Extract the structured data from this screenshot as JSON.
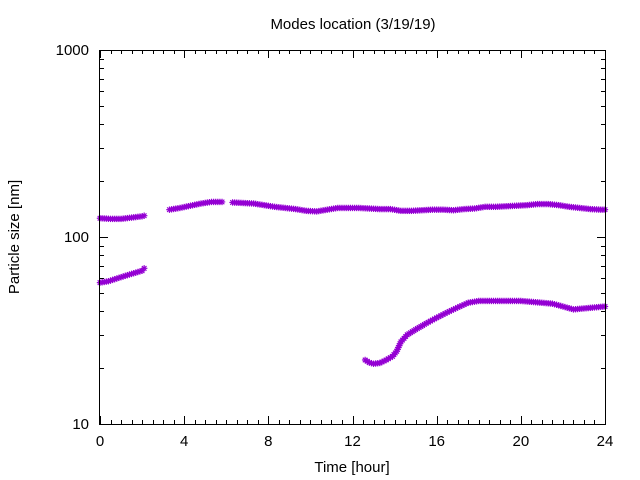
{
  "chart_data": {
    "type": "scatter",
    "title": "Modes location (3/19/19)",
    "xlabel": "Time [hour]",
    "ylabel": "Particle size [nm]",
    "xlim": [
      0,
      24
    ],
    "ylim": [
      10,
      1000
    ],
    "yscale": "log",
    "xticks": [
      0,
      4,
      8,
      12,
      16,
      20,
      24
    ],
    "xtick_labels": [
      "0",
      "4",
      "8",
      "12",
      "16",
      "20",
      "24"
    ],
    "yticks": [
      10,
      100,
      1000
    ],
    "ytick_labels": [
      "10",
      "100",
      "1000"
    ],
    "grid": false,
    "legend": false,
    "marker": "star",
    "color": "#9400d3",
    "series": [
      {
        "x": [
          0.0,
          0.5,
          1.0,
          1.5,
          2.0,
          2.1
        ],
        "y": [
          126,
          125,
          125,
          127,
          129,
          130
        ]
      },
      {
        "x": [
          3.3,
          3.8,
          4.3,
          4.8,
          5.3,
          5.8
        ],
        "y": [
          140,
          143,
          147,
          151,
          154,
          154
        ]
      },
      {
        "x": [
          6.3,
          6.8,
          7.3,
          7.8,
          8.3,
          8.8,
          9.3,
          9.8,
          10.3,
          10.8,
          11.3,
          11.8,
          12.3,
          12.8,
          13.3,
          13.8,
          14.3,
          14.8,
          15.3,
          15.8,
          16.3,
          16.8,
          17.3,
          17.8,
          18.3,
          18.8,
          19.3,
          19.8,
          20.3,
          20.8,
          21.3,
          21.8,
          22.3,
          22.8,
          23.3,
          23.8,
          24.0
        ],
        "y": [
          153,
          152,
          151,
          148,
          145,
          143,
          141,
          138,
          137,
          140,
          143,
          143,
          143,
          142,
          141,
          141,
          138,
          138,
          139,
          140,
          140,
          139,
          141,
          142,
          145,
          145,
          146,
          147,
          148,
          150,
          150,
          148,
          145,
          143,
          141,
          140,
          140
        ]
      },
      {
        "x": [
          0.0,
          0.4,
          0.8,
          1.2,
          1.6,
          2.0,
          2.1
        ],
        "y": [
          57,
          58,
          60,
          62,
          64,
          66,
          68
        ]
      },
      {
        "x": [
          12.6,
          12.8,
          13.0,
          13.3,
          13.6,
          13.9,
          14.1,
          14.3,
          14.6,
          15.0,
          15.5,
          16.0,
          16.5,
          17.0,
          17.5,
          18.0,
          18.5,
          19.0,
          19.5,
          20.0,
          20.5,
          21.0,
          21.5,
          22.0,
          22.5,
          23.0,
          23.5,
          24.0
        ],
        "y": [
          22,
          21.3,
          21,
          21.2,
          22,
          23,
          24.5,
          27.5,
          30,
          32,
          34.5,
          37,
          39.5,
          42,
          44.5,
          45.5,
          45.5,
          45.5,
          45.5,
          45.5,
          45,
          44.5,
          44,
          42.5,
          41,
          41.5,
          42,
          42.5
        ]
      }
    ]
  }
}
